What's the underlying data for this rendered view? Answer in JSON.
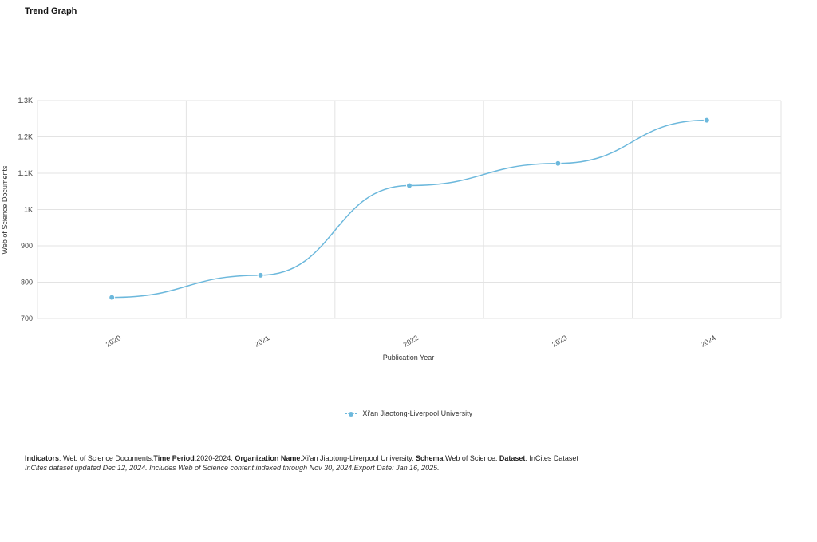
{
  "page": {
    "title": "Trend Graph"
  },
  "chart_data": {
    "type": "line",
    "x": [
      "2020",
      "2021",
      "2022",
      "2023",
      "2024"
    ],
    "series": [
      {
        "name": "Xi'an Jiaotong-Liverpool University",
        "values": [
          758,
          819,
          1066,
          1127,
          1246
        ]
      }
    ],
    "xlabel": "Publication Year",
    "ylabel": "Web of Science Documents",
    "ylim": [
      700,
      1300
    ],
    "yticks": [
      700,
      800,
      900,
      1000,
      1100,
      1200,
      1300
    ],
    "ytick_labels": [
      "700",
      "800",
      "900",
      "1K",
      "1.1K",
      "1.2K",
      "1.3K"
    ],
    "grid": true,
    "legend": "bottom-center",
    "color": "#6cb8dc"
  },
  "footer": {
    "indicators_label": "Indicators",
    "indicators_value": ": Web of Science Documents.",
    "period_label": "Time Period",
    "period_value": ":2020-2024. ",
    "org_label": "Organization Name",
    "org_value": ":Xi'an Jiaotong-Liverpool University. ",
    "schema_label": "Schema",
    "schema_value": ":Web of Science. ",
    "dataset_label": "Dataset",
    "dataset_value": ": InCites Dataset",
    "note": "InCites dataset updated Dec 12, 2024. Includes Web of Science content indexed through Nov 30, 2024.Export Date: Jan 16, 2025."
  }
}
